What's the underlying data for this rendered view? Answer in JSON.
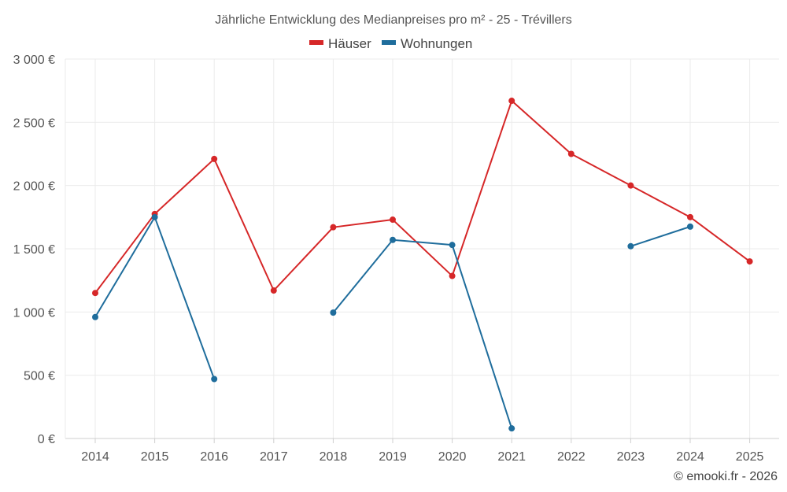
{
  "chart_data": {
    "type": "line",
    "title": "Jährliche Entwicklung des Medianpreises pro m² - 25 - Trévillers",
    "categories": [
      "2014",
      "2015",
      "2016",
      "2017",
      "2018",
      "2019",
      "2020",
      "2021",
      "2022",
      "2023",
      "2024",
      "2025"
    ],
    "ylim": [
      0,
      3000
    ],
    "yticks": [
      0,
      500,
      1000,
      1500,
      2000,
      2500,
      3000
    ],
    "ytick_labels": [
      "0 €",
      "500 €",
      "1 000 €",
      "1 500 €",
      "2 000 €",
      "2 500 €",
      "3 000 €"
    ],
    "xlabel": "",
    "ylabel": "",
    "grid": true,
    "legend_position": "top-center",
    "series": [
      {
        "name": "Häuser",
        "color": "#d62728",
        "values": [
          1150,
          1775,
          2210,
          1170,
          1670,
          1730,
          1285,
          2670,
          2250,
          2000,
          1750,
          1400
        ]
      },
      {
        "name": "Wohnungen",
        "color": "#1f6d9c",
        "values": [
          960,
          1750,
          470,
          null,
          995,
          1570,
          1530,
          80,
          null,
          1520,
          1675,
          null
        ]
      }
    ]
  },
  "credit": "© emooki.fr - 2026"
}
